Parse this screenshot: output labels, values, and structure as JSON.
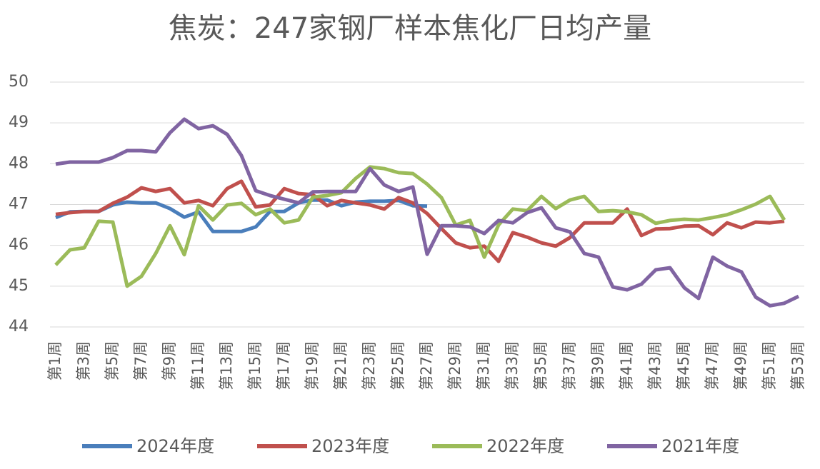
{
  "chart_data": {
    "type": "line",
    "title": "焦炭：247家钢厂样本焦化厂日均产量",
    "categories": [
      "第1周",
      null,
      "第3周",
      null,
      "第5周",
      null,
      "第7周",
      null,
      "第9周",
      null,
      "第11周",
      null,
      "第13周",
      null,
      "第15周",
      null,
      "第17周",
      null,
      "第19周",
      null,
      "第21周",
      null,
      "第23周",
      null,
      "第25周",
      null,
      "第27周",
      null,
      "第29周",
      null,
      "第31周",
      null,
      "第33周",
      null,
      "第35周",
      null,
      "第37周",
      null,
      "第39周",
      null,
      "第41周",
      null,
      "第43周",
      null,
      "第45周",
      null,
      "第47周",
      null,
      "第49周",
      null,
      "第51周",
      null,
      "第53周"
    ],
    "series": [
      {
        "name": "2024年度",
        "color": "#4a7ebb",
        "values": [
          46.68,
          46.82,
          46.83,
          46.83,
          46.99,
          47.06,
          47.04,
          47.04,
          46.9,
          46.69,
          46.82,
          46.34,
          46.34,
          46.34,
          46.45,
          46.83,
          46.83,
          47.04,
          47.11,
          47.11,
          46.97,
          47.06,
          47.08,
          47.08,
          47.1,
          46.97,
          46.96,
          null,
          null,
          null,
          null,
          null,
          null,
          null,
          null,
          null,
          null,
          null,
          null,
          null,
          null,
          null,
          null,
          null,
          null,
          null,
          null,
          null,
          null,
          null,
          null,
          null,
          null
        ]
      },
      {
        "name": "2023年度",
        "color": "#c0504d",
        "values": [
          46.76,
          46.8,
          46.83,
          46.83,
          47.03,
          47.18,
          47.41,
          47.32,
          47.39,
          47.04,
          47.1,
          46.97,
          47.39,
          47.57,
          46.94,
          46.99,
          47.39,
          47.27,
          47.24,
          46.97,
          47.1,
          47.04,
          46.99,
          46.89,
          47.17,
          47.04,
          46.78,
          46.41,
          46.06,
          45.94,
          45.98,
          45.61,
          46.31,
          46.2,
          46.06,
          45.98,
          46.19,
          46.55,
          46.55,
          46.55,
          46.89,
          46.24,
          46.4,
          46.41,
          46.47,
          46.48,
          46.26,
          46.55,
          46.43,
          46.57,
          46.55,
          46.59,
          null
        ]
      },
      {
        "name": "2022年度",
        "color": "#9bbb59",
        "values": [
          45.52,
          45.89,
          45.94,
          46.59,
          46.57,
          45.0,
          45.24,
          45.8,
          46.48,
          45.77,
          46.97,
          46.62,
          46.99,
          47.03,
          46.75,
          46.89,
          46.55,
          46.62,
          47.18,
          47.22,
          47.29,
          47.64,
          47.92,
          47.88,
          47.78,
          47.76,
          47.5,
          47.17,
          46.5,
          46.61,
          45.71,
          46.5,
          46.89,
          46.85,
          47.2,
          46.9,
          47.11,
          47.2,
          46.83,
          46.85,
          46.82,
          46.75,
          46.54,
          46.61,
          46.64,
          46.62,
          46.68,
          46.75,
          46.87,
          47.01,
          47.2,
          46.62,
          null
        ]
      },
      {
        "name": "2021年度",
        "color": "#8064a2",
        "values": [
          47.99,
          48.04,
          48.04,
          48.04,
          48.15,
          48.32,
          48.32,
          48.29,
          48.76,
          49.09,
          48.86,
          48.93,
          48.72,
          48.2,
          47.34,
          47.22,
          47.13,
          47.04,
          47.31,
          47.32,
          47.32,
          47.32,
          47.88,
          47.48,
          47.32,
          47.43,
          45.78,
          46.48,
          46.48,
          46.45,
          46.29,
          46.61,
          46.55,
          46.8,
          46.92,
          46.43,
          46.33,
          45.8,
          45.71,
          44.98,
          44.91,
          45.05,
          45.4,
          45.45,
          44.96,
          44.7,
          45.71,
          45.49,
          45.35,
          44.73,
          44.52,
          44.58,
          44.75
        ]
      }
    ],
    "ylim": [
      44,
      50
    ],
    "yticks": [
      44,
      45,
      46,
      47,
      48,
      49,
      50
    ],
    "grid": true,
    "legend": "bottom"
  }
}
